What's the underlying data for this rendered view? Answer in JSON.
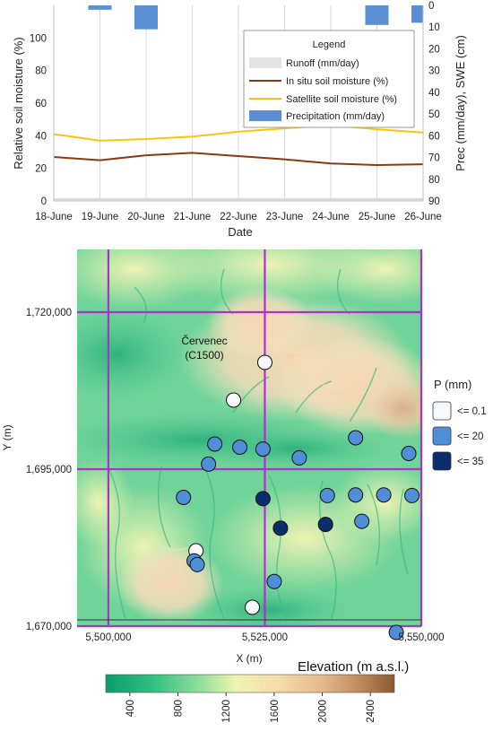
{
  "chart_data": [
    {
      "type": "line",
      "xlabel": "Date",
      "ylabel_left": "Relative soil moisture (%)",
      "ylabel_right": "Prec (mm/day), SWE (cm)",
      "x": [
        "18-June",
        "19-June",
        "20-June",
        "21-June",
        "22-June",
        "23-June",
        "24-June",
        "25-June",
        "26-June"
      ],
      "ylim_left": [
        0,
        120
      ],
      "yticks_left": [
        "0",
        "20",
        "40",
        "60",
        "80",
        "100"
      ],
      "ylim_right": [
        90,
        0
      ],
      "yticks_right": [
        "0",
        "10",
        "20",
        "30",
        "40",
        "50",
        "60",
        "70",
        "80",
        "90"
      ],
      "grid": "vertical",
      "legend": {
        "title": "Legend",
        "placement": "top-right",
        "items": [
          "Runoff (mm/day)",
          "In situ soil moisture (%)",
          "Satellite soil moisture (%)",
          "Precipitation (mm/day)"
        ]
      },
      "series": [
        {
          "name": "Runoff (mm/day)",
          "color": "#d9d9d9",
          "axis": "left",
          "values": [
            1,
            1,
            1,
            1,
            1,
            1,
            1,
            1,
            1
          ]
        },
        {
          "name": "In situ soil moisture (%)",
          "color": "#8b3a0f",
          "axis": "left",
          "values": [
            27,
            25,
            28,
            29.5,
            27.5,
            25.5,
            23,
            22,
            22.5
          ]
        },
        {
          "name": "Satellite soil moisture (%)",
          "color": "#ffc20e",
          "axis": "left",
          "values": [
            41,
            37,
            38,
            39.5,
            42.5,
            44.5,
            46.5,
            44,
            42
          ]
        },
        {
          "name": "Precipitation (mm/day)",
          "color": "#5b8fd4",
          "axis": "right",
          "kind": "bar",
          "values": [
            0,
            2,
            11,
            0,
            0,
            0,
            0,
            9,
            8
          ]
        }
      ]
    },
    {
      "type": "scatter",
      "xlabel": "X (m)",
      "ylabel": "Y (m)",
      "xlim": [
        5495000,
        5550000
      ],
      "ylim": [
        1670000,
        1730000
      ],
      "xticks": [
        5500000,
        5525000,
        5550000
      ],
      "xtick_labels": [
        "5,500,000",
        "5,525,000",
        "5,550,000"
      ],
      "yticks": [
        1670000,
        1695000,
        1720000
      ],
      "ytick_labels": [
        "1,670,000",
        "1,695,000",
        "1,720,000"
      ],
      "grid_lines_x": [
        5500000,
        5525000,
        5550000
      ],
      "grid_lines_y": [
        1670000,
        1695000,
        1720000
      ],
      "annotation": {
        "text": [
          "Červenec",
          "(C1500)"
        ],
        "x": 5521000,
        "y": 1700500
      },
      "legend": {
        "title": "P (mm)",
        "placement": "right",
        "classes": [
          {
            "label": "<= 0.1",
            "color": "#f7f8fc"
          },
          {
            "label": "<= 20",
            "color": "#4f8fd8"
          },
          {
            "label": "<= 35",
            "color": "#0b2d6b"
          }
        ]
      },
      "stations": [
        {
          "x": 5525000,
          "y": 1712000,
          "class": 0
        },
        {
          "x": 5520000,
          "y": 1706000,
          "class": 0
        },
        {
          "x": 5517000,
          "y": 1699000,
          "class": 1
        },
        {
          "x": 5521000,
          "y": 1698500,
          "class": 1
        },
        {
          "x": 5524700,
          "y": 1698200,
          "class": 1
        },
        {
          "x": 5539500,
          "y": 1700000,
          "class": 1
        },
        {
          "x": 5548000,
          "y": 1697500,
          "class": 1
        },
        {
          "x": 5516000,
          "y": 1695800,
          "class": 1
        },
        {
          "x": 5530500,
          "y": 1696800,
          "class": 1
        },
        {
          "x": 5512000,
          "y": 1690500,
          "class": 1
        },
        {
          "x": 5524700,
          "y": 1690300,
          "class": 2
        },
        {
          "x": 5535000,
          "y": 1690800,
          "class": 1
        },
        {
          "x": 5539500,
          "y": 1690900,
          "class": 1
        },
        {
          "x": 5544000,
          "y": 1690900,
          "class": 1
        },
        {
          "x": 5548500,
          "y": 1690800,
          "class": 1
        },
        {
          "x": 5527500,
          "y": 1685600,
          "class": 2
        },
        {
          "x": 5534700,
          "y": 1686200,
          "class": 2
        },
        {
          "x": 5540500,
          "y": 1686700,
          "class": 1
        },
        {
          "x": 5514000,
          "y": 1682000,
          "class": 0
        },
        {
          "x": 5513700,
          "y": 1680400,
          "class": 1
        },
        {
          "x": 5514200,
          "y": 1679800,
          "class": 1
        },
        {
          "x": 5526500,
          "y": 1677100,
          "class": 1
        },
        {
          "x": 5523000,
          "y": 1673000,
          "class": 0
        },
        {
          "x": 5546000,
          "y": 1669000,
          "class": 1
        }
      ]
    },
    {
      "type": "colorbar",
      "title": "Elevation (m a.s.l.)",
      "ticks": [
        400,
        800,
        1200,
        1600,
        2000,
        2400
      ],
      "tick_labels": [
        "400",
        "800",
        "1200",
        "1600",
        "2000",
        "2400"
      ],
      "range": [
        200,
        2600
      ],
      "colors": [
        "#0b9c6d",
        "#2fbf80",
        "#8edc9a",
        "#eef5b0",
        "#f5dba8",
        "#e4b98c",
        "#bf8a58",
        "#8a5a30"
      ]
    }
  ]
}
